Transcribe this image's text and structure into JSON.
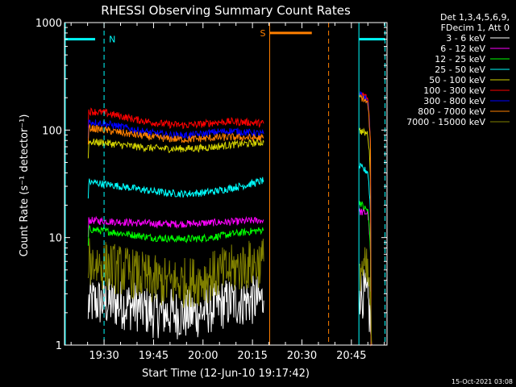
{
  "chart_data": {
    "type": "line",
    "title": "RHESSI Observing Summary Count Rates",
    "xlabel": "Start Time (12-Jun-10 19:17:42)",
    "ylabel": "Count Rate (s⁻¹ detector⁻¹)",
    "yscale": "log",
    "ylim": [
      1,
      1000
    ],
    "xlim_minutes": [
      19.3,
      20.93
    ],
    "x_ticks": [
      "19:30",
      "19:45",
      "20:00",
      "20:15",
      "20:30",
      "20:45"
    ],
    "y_ticks": [
      "1",
      "10",
      "100",
      "1000"
    ],
    "legend_header": [
      "Det 1,3,4,5,6,9,",
      "FDecim 1, Att 0"
    ],
    "footer": "15-Oct-2021 03:08",
    "flags": {
      "night": {
        "label": "N",
        "color": "#00ffff",
        "y": 700,
        "intervals": [
          [
            19.3,
            19.455
          ],
          [
            20.79,
            20.92
          ]
        ],
        "markers_solid": [
          20.788
        ],
        "markers_dashed": [
          19.5,
          20.92
        ]
      },
      "saa": {
        "label": "S",
        "color": "#ff7f00",
        "y": 800,
        "intervals": [
          [
            20.337,
            20.55
          ]
        ],
        "markers_solid": [
          20.337
        ],
        "markers_dashed": [
          20.635
        ]
      }
    },
    "segments": [
      [
        19.42,
        20.307
      ],
      [
        20.79,
        20.855
      ]
    ],
    "series": [
      {
        "name": "3 - 6 keV",
        "color": "#ffffff",
        "seg1": [
          2.5,
          2.5,
          2.4,
          2.3,
          2.0,
          2.0,
          1.9,
          2.0,
          2.3,
          2.5,
          2.6,
          2.6
        ],
        "seg2": [
          3.2,
          3.0,
          2.5,
          1.0
        ]
      },
      {
        "name": "6 - 12 keV",
        "color": "#ff00ff",
        "seg1": [
          14.5,
          14.2,
          14.0,
          13.7,
          13.5,
          13.4,
          13.4,
          13.6,
          13.8,
          14.0,
          14.3,
          14.5
        ],
        "seg2": [
          17.5,
          17.0,
          17.0,
          1.0
        ]
      },
      {
        "name": "12 - 25 keV",
        "color": "#00ff00",
        "seg1": [
          12.0,
          11.5,
          11.0,
          10.5,
          10.0,
          9.8,
          9.7,
          9.8,
          10.2,
          10.8,
          11.3,
          11.8
        ],
        "seg2": [
          22.0,
          19.0,
          18.0,
          1.0
        ]
      },
      {
        "name": "25 - 50 keV",
        "color": "#00ffff",
        "seg1": [
          33.0,
          31.5,
          30.0,
          28.5,
          27.0,
          26.0,
          25.5,
          26.0,
          27.0,
          29.0,
          31.0,
          34.0
        ],
        "seg2": [
          46.0,
          43.0,
          41.0,
          1.0
        ]
      },
      {
        "name": "50 - 100 keV",
        "color": "#d4d400",
        "seg1": [
          78.0,
          76.0,
          73.0,
          70.0,
          68.0,
          67.0,
          67.0,
          68.0,
          70.0,
          73.0,
          75.0,
          77.0
        ],
        "seg2": [
          100.0,
          95.0,
          92.0,
          1.0
        ]
      },
      {
        "name": "100 - 300 keV",
        "color": "#ff0000",
        "seg1": [
          150.0,
          145.0,
          135.0,
          125.0,
          118.0,
          113.0,
          111.0,
          113.0,
          118.0,
          120.0,
          118.0,
          115.0
        ],
        "seg2": [
          220.0,
          210.0,
          195.0,
          1.0
        ]
      },
      {
        "name": "300 - 800 keV",
        "color": "#0000ff",
        "seg1": [
          120.0,
          115.0,
          108.0,
          100.0,
          94.0,
          90.0,
          89.0,
          91.0,
          96.0,
          98.0,
          95.0,
          92.0
        ],
        "seg2": [
          215.0,
          205.0,
          185.0,
          1.0
        ]
      },
      {
        "name": "800 - 7000 keV",
        "color": "#ff8000",
        "seg1": [
          105.0,
          100.0,
          95.0,
          90.0,
          86.0,
          83.0,
          82.0,
          83.0,
          85.0,
          86.0,
          85.0,
          84.0
        ],
        "seg2": [
          205.0,
          195.0,
          175.0,
          1.0
        ]
      },
      {
        "name": "7000 - 15000 keV",
        "color": "#808000",
        "seg1": [
          6.0,
          5.5,
          5.0,
          4.5,
          4.0,
          3.8,
          3.8,
          4.0,
          4.5,
          5.0,
          5.5,
          6.0
        ],
        "seg2": [
          5.5,
          5.0,
          4.5,
          1.0
        ]
      }
    ]
  }
}
